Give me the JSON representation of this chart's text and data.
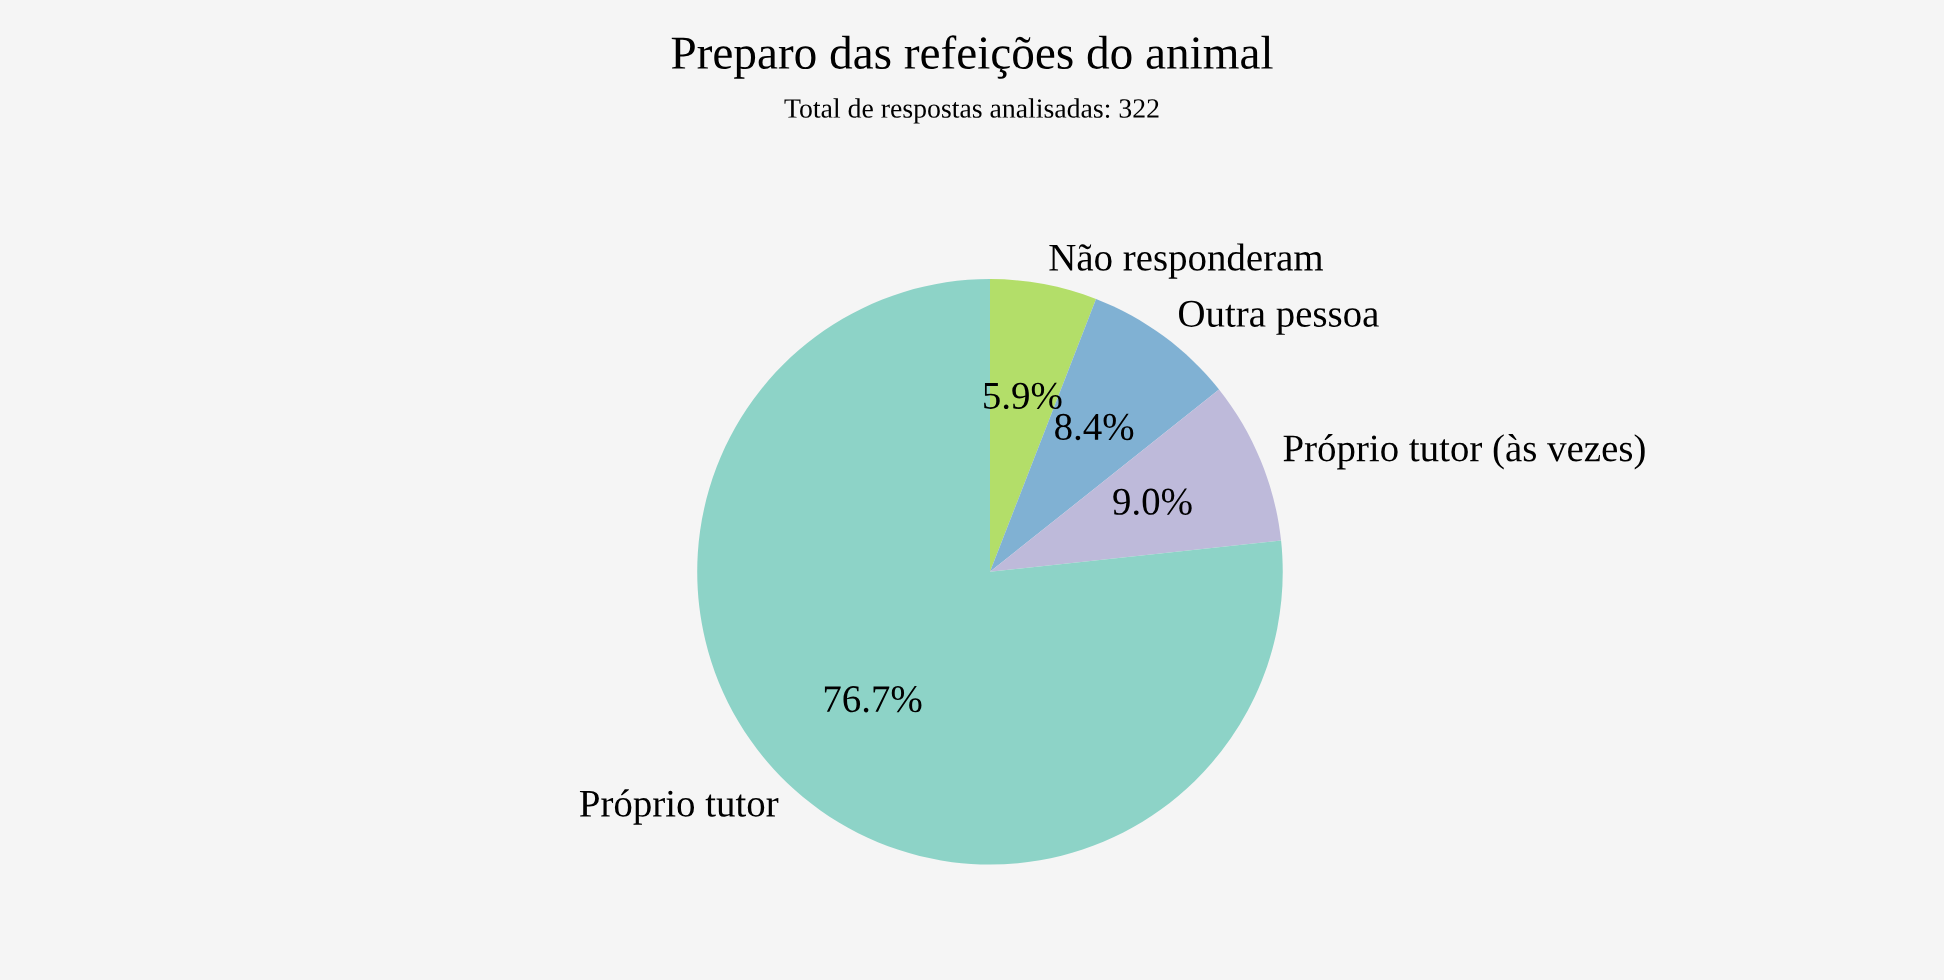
{
  "chart_data": {
    "type": "pie",
    "title": "Preparo das refeições do animal",
    "subtitle": "Total de respostas analisadas: 322",
    "categories": [
      "Não responderam",
      "Outra pessoa",
      "Próprio tutor (às vezes)",
      "Próprio tutor"
    ],
    "values": [
      5.9,
      8.4,
      9.0,
      76.7
    ],
    "value_labels": [
      "5.9%",
      "8.4%",
      "9.0%",
      "76.7%"
    ],
    "colors": [
      "#b3de69",
      "#80b1d3",
      "#bebada",
      "#8dd3c7"
    ],
    "legend": false
  }
}
